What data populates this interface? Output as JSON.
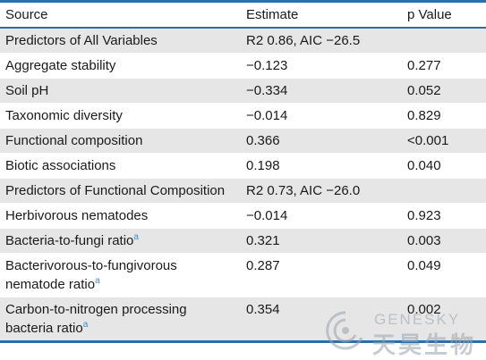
{
  "table": {
    "headers": [
      "Source",
      "Estimate",
      "p Value"
    ],
    "rows": [
      {
        "source": "Predictors of All Variables",
        "estimate": "R2 0.86, AIC −26.5",
        "p": ""
      },
      {
        "source": "Aggregate stability",
        "estimate": "−0.123",
        "p": "0.277"
      },
      {
        "source": "Soil pH",
        "estimate": "−0.334",
        "p": "0.052"
      },
      {
        "source": "Taxonomic diversity",
        "estimate": "−0.014",
        "p": "0.829"
      },
      {
        "source": "Functional composition",
        "estimate": "0.366",
        "p": "<0.001"
      },
      {
        "source": "Biotic associations",
        "estimate": "0.198",
        "p": "0.040"
      },
      {
        "source": "Predictors of Functional Composition",
        "estimate": "R2 0.73, AIC −26.0",
        "p": ""
      },
      {
        "source": "Herbivorous nematodes",
        "estimate": "−0.014",
        "p": "0.923"
      },
      {
        "source": "Bacteria-to-fungi ratio",
        "sup": "a",
        "estimate": "0.321",
        "p": "0.003"
      },
      {
        "source": "Bacterivorous-to-fungivorous nematode ratio",
        "sup": "a",
        "estimate": "0.287",
        "p": "0.049"
      },
      {
        "source": "Carbon-to-nitrogen processing bacteria ratio",
        "sup": "a",
        "estimate": "0.354",
        "p": "0.002"
      }
    ]
  },
  "watermark": {
    "en": "GENESKY",
    "cn": "天昊生物"
  },
  "colors": {
    "rule": "#2c6ea6",
    "stripe": "#e6e6e6",
    "superscript": "#3a8fd1"
  }
}
